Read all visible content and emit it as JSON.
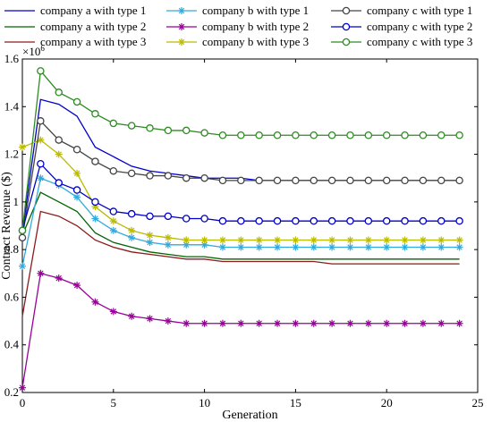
{
  "chart_data": {
    "type": "line",
    "xlabel": "Generation",
    "ylabel": "Contract Revenue ($)",
    "y_multiplier_label": "x10^6",
    "xlim": [
      0,
      25
    ],
    "ylim": [
      0.2,
      1.6
    ],
    "xticks": [
      "0",
      "5",
      "10",
      "15",
      "20",
      "25"
    ],
    "yticks": [
      "0.2",
      "0.4",
      "0.6",
      "0.8",
      "1",
      "1.2",
      "1.4",
      "1.6"
    ],
    "grid": false,
    "legend_position": "top",
    "x": [
      0,
      1,
      2,
      3,
      4,
      5,
      6,
      7,
      8,
      9,
      10,
      11,
      12,
      13,
      14,
      15,
      16,
      17,
      18,
      19,
      20,
      21,
      22,
      23,
      24
    ],
    "series": [
      {
        "name": "company a with type 1",
        "color": "#0000cc",
        "marker": "none",
        "values": [
          0.87,
          1.43,
          1.41,
          1.36,
          1.23,
          1.19,
          1.15,
          1.13,
          1.12,
          1.11,
          1.1,
          1.1,
          1.1,
          1.09,
          1.09,
          1.09,
          1.09,
          1.09,
          1.09,
          1.09,
          1.09,
          1.09,
          1.09,
          1.09,
          1.09
        ]
      },
      {
        "name": "company a with type 2",
        "color": "#006400",
        "marker": "none",
        "values": [
          0.86,
          1.04,
          1.0,
          0.96,
          0.87,
          0.83,
          0.81,
          0.79,
          0.78,
          0.77,
          0.77,
          0.76,
          0.76,
          0.76,
          0.76,
          0.76,
          0.76,
          0.76,
          0.76,
          0.76,
          0.76,
          0.76,
          0.76,
          0.76,
          0.76
        ]
      },
      {
        "name": "company a with type 3",
        "color": "#8b1a1a",
        "marker": "none",
        "values": [
          0.52,
          0.96,
          0.94,
          0.9,
          0.84,
          0.81,
          0.79,
          0.78,
          0.77,
          0.76,
          0.76,
          0.75,
          0.75,
          0.75,
          0.75,
          0.75,
          0.75,
          0.74,
          0.74,
          0.74,
          0.74,
          0.74,
          0.74,
          0.74,
          0.74
        ]
      },
      {
        "name": "company b with type 1",
        "color": "#33aadd",
        "marker": "star",
        "values": [
          0.73,
          1.1,
          1.07,
          1.02,
          0.93,
          0.88,
          0.85,
          0.83,
          0.82,
          0.82,
          0.82,
          0.81,
          0.81,
          0.81,
          0.81,
          0.81,
          0.81,
          0.81,
          0.81,
          0.81,
          0.81,
          0.81,
          0.81,
          0.81,
          0.81
        ]
      },
      {
        "name": "company b with type 2",
        "color": "#990099",
        "marker": "star",
        "values": [
          0.22,
          0.7,
          0.68,
          0.65,
          0.58,
          0.54,
          0.52,
          0.51,
          0.5,
          0.49,
          0.49,
          0.49,
          0.49,
          0.49,
          0.49,
          0.49,
          0.49,
          0.49,
          0.49,
          0.49,
          0.49,
          0.49,
          0.49,
          0.49,
          0.49
        ]
      },
      {
        "name": "company b with type 3",
        "color": "#bbbb00",
        "marker": "star",
        "values": [
          1.23,
          1.26,
          1.2,
          1.12,
          0.98,
          0.92,
          0.88,
          0.86,
          0.85,
          0.84,
          0.84,
          0.84,
          0.84,
          0.84,
          0.84,
          0.84,
          0.84,
          0.84,
          0.84,
          0.84,
          0.84,
          0.84,
          0.84,
          0.84,
          0.84
        ]
      },
      {
        "name": "company c with type 1",
        "color": "#444444",
        "marker": "circle",
        "values": [
          0.85,
          1.34,
          1.26,
          1.22,
          1.17,
          1.13,
          1.12,
          1.11,
          1.11,
          1.1,
          1.1,
          1.09,
          1.09,
          1.09,
          1.09,
          1.09,
          1.09,
          1.09,
          1.09,
          1.09,
          1.09,
          1.09,
          1.09,
          1.09,
          1.09
        ]
      },
      {
        "name": "company c with type 2",
        "color": "#0000cc",
        "marker": "circle",
        "values": [
          0.88,
          1.16,
          1.08,
          1.05,
          1.0,
          0.96,
          0.95,
          0.94,
          0.94,
          0.93,
          0.93,
          0.92,
          0.92,
          0.92,
          0.92,
          0.92,
          0.92,
          0.92,
          0.92,
          0.92,
          0.92,
          0.92,
          0.92,
          0.92,
          0.92
        ]
      },
      {
        "name": "company c with type 3",
        "color": "#2e8b22",
        "marker": "circle",
        "values": [
          0.88,
          1.55,
          1.46,
          1.42,
          1.37,
          1.33,
          1.32,
          1.31,
          1.3,
          1.3,
          1.29,
          1.28,
          1.28,
          1.28,
          1.28,
          1.28,
          1.28,
          1.28,
          1.28,
          1.28,
          1.28,
          1.28,
          1.28,
          1.28,
          1.28
        ]
      }
    ]
  }
}
